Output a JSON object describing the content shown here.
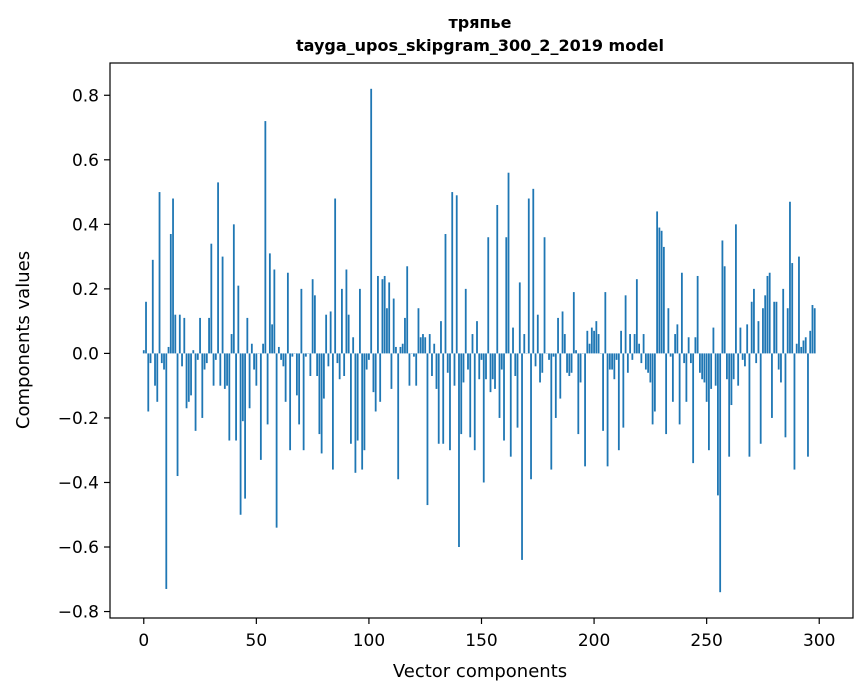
{
  "chart_data": {
    "type": "bar",
    "title": "тряпье",
    "subtitle": "tayga_upos_skipgram_300_2_2019 model",
    "xlabel": "Vector components",
    "ylabel": "Components values",
    "xlim": [
      -15,
      315
    ],
    "ylim": [
      -0.82,
      0.9
    ],
    "xticks": [
      0,
      50,
      100,
      150,
      200,
      250,
      300
    ],
    "yticks": [
      -0.8,
      -0.6,
      -0.4,
      -0.2,
      0.0,
      0.2,
      0.4,
      0.6,
      0.8
    ],
    "ytick_labels": [
      "−0.8",
      "−0.6",
      "−0.4",
      "−0.2",
      "0.0",
      "0.2",
      "0.4",
      "0.6",
      "0.8"
    ],
    "bar_color": "#1f77b4",
    "grid": false,
    "series": [
      {
        "values": [
          0.01,
          0.16,
          -0.18,
          -0.03,
          0.29,
          -0.1,
          -0.15,
          0.5,
          -0.03,
          -0.05,
          -0.73,
          0.02,
          0.37,
          0.48,
          0.12,
          -0.38,
          0.12,
          -0.04,
          0.11,
          -0.17,
          -0.15,
          -0.13,
          0.01,
          -0.24,
          -0.02,
          0.11,
          -0.2,
          -0.05,
          -0.03,
          0.11,
          0.34,
          -0.1,
          -0.02,
          0.53,
          -0.1,
          0.3,
          -0.11,
          -0.1,
          -0.27,
          0.06,
          0.4,
          -0.27,
          0.21,
          -0.5,
          -0.21,
          -0.45,
          0.11,
          -0.17,
          0.03,
          -0.05,
          -0.1,
          0.0,
          -0.33,
          0.03,
          0.72,
          -0.22,
          0.31,
          0.09,
          0.26,
          -0.54,
          0.02,
          -0.02,
          -0.04,
          -0.15,
          0.25,
          -0.3,
          -0.01,
          0.0,
          -0.13,
          -0.22,
          0.2,
          -0.3,
          -0.01,
          0.0,
          -0.07,
          0.23,
          0.18,
          -0.07,
          -0.25,
          -0.31,
          -0.14,
          0.12,
          -0.04,
          0.13,
          -0.36,
          0.48,
          -0.03,
          -0.08,
          0.2,
          -0.07,
          0.26,
          0.12,
          -0.28,
          0.05,
          -0.37,
          -0.27,
          0.2,
          -0.36,
          -0.3,
          -0.05,
          -0.02,
          0.82,
          -0.12,
          -0.18,
          0.24,
          -0.15,
          0.23,
          0.24,
          0.14,
          0.22,
          -0.11,
          0.17,
          0.02,
          -0.39,
          0.02,
          0.03,
          0.11,
          0.27,
          -0.1,
          0.0,
          -0.01,
          -0.1,
          0.14,
          0.05,
          0.06,
          0.05,
          -0.47,
          0.06,
          -0.07,
          0.03,
          -0.11,
          -0.28,
          0.1,
          -0.28,
          0.37,
          -0.06,
          -0.3,
          0.5,
          -0.1,
          0.49,
          -0.6,
          -0.25,
          -0.09,
          0.2,
          -0.05,
          -0.26,
          0.06,
          -0.3,
          0.1,
          -0.08,
          -0.02,
          -0.4,
          -0.08,
          0.36,
          -0.12,
          -0.08,
          -0.11,
          0.46,
          -0.2,
          -0.05,
          -0.27,
          0.36,
          0.56,
          -0.32,
          0.08,
          -0.07,
          -0.23,
          0.22,
          -0.64,
          0.06,
          0.0,
          0.48,
          -0.39,
          0.51,
          -0.04,
          0.12,
          -0.09,
          -0.06,
          0.36,
          0.0,
          -0.02,
          -0.36,
          -0.01,
          -0.2,
          0.11,
          -0.14,
          0.13,
          0.06,
          -0.06,
          -0.07,
          -0.06,
          0.19,
          0.01,
          -0.25,
          -0.09,
          0.0,
          -0.35,
          0.07,
          0.03,
          0.08,
          0.07,
          0.1,
          0.06,
          0.0,
          -0.24,
          0.19,
          -0.35,
          -0.05,
          -0.05,
          -0.08,
          -0.02,
          -0.3,
          0.07,
          -0.23,
          0.18,
          -0.06,
          0.06,
          -0.02,
          0.06,
          0.23,
          0.03,
          -0.03,
          0.06,
          -0.05,
          -0.06,
          -0.09,
          -0.22,
          -0.18,
          0.44,
          0.39,
          0.38,
          0.33,
          -0.25,
          0.14,
          -0.01,
          -0.15,
          0.06,
          0.09,
          -0.22,
          0.25,
          -0.03,
          -0.15,
          0.05,
          -0.03,
          -0.34,
          0.05,
          0.24,
          -0.06,
          -0.08,
          -0.09,
          -0.15,
          -0.3,
          -0.11,
          0.08,
          -0.1,
          -0.44,
          -0.74,
          0.35,
          0.27,
          -0.08,
          -0.32,
          -0.16,
          -0.08,
          0.4,
          -0.1,
          0.08,
          -0.02,
          -0.04,
          0.09,
          -0.32,
          0.16,
          0.2,
          -0.03,
          0.1,
          -0.28,
          0.14,
          0.18,
          0.24,
          0.25,
          -0.2,
          0.16,
          0.16,
          -0.05,
          -0.09,
          0.2,
          -0.26,
          0.14,
          0.47,
          0.28,
          -0.36,
          0.03,
          0.3,
          0.02,
          0.04,
          0.05,
          -0.32,
          0.07,
          0.15,
          0.14
        ]
      }
    ]
  }
}
